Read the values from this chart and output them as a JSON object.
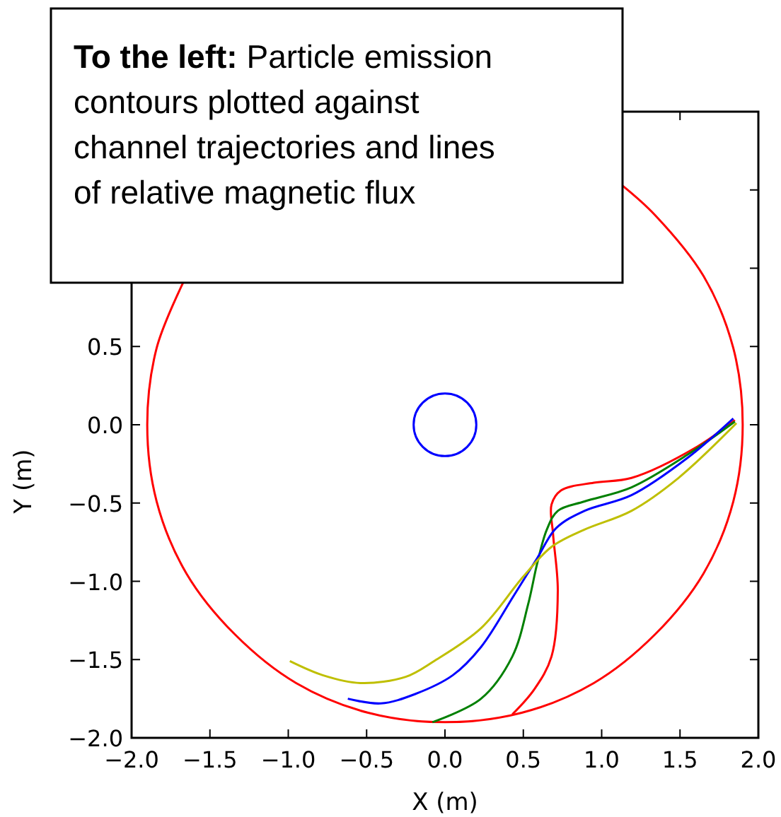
{
  "chart_data": {
    "type": "line",
    "xlabel": "X (m)",
    "ylabel": "Y (m)",
    "annotations": [
      "To the left: Particle emission contours plotted against channel trajectories and lines of relative magnetic flux"
    ],
    "xlim": [
      -2,
      2
    ],
    "ylim": [
      -2,
      2
    ],
    "xticks": [
      {
        "value": -2,
        "label": "−2.0"
      },
      {
        "value": -1.5,
        "label": "−1.5"
      },
      {
        "value": -1,
        "label": "−1.0"
      },
      {
        "value": -0.5,
        "label": "−0.5"
      },
      {
        "value": 0,
        "label": "0.0"
      },
      {
        "value": 0.5,
        "label": "0.5"
      },
      {
        "value": 1,
        "label": "1.0"
      },
      {
        "value": 1.5,
        "label": "1.5"
      },
      {
        "value": 2,
        "label": "2.0"
      }
    ],
    "yticks": [
      {
        "value": -2,
        "label": "−2.0"
      },
      {
        "value": -1.5,
        "label": "−1.5"
      },
      {
        "value": -1,
        "label": "−1.0"
      },
      {
        "value": -0.5,
        "label": "−0.5"
      },
      {
        "value": 0,
        "label": "0.0"
      },
      {
        "value": 0.5,
        "label": "0.5"
      },
      {
        "value": 1,
        "label": null
      },
      {
        "value": 1.5,
        "label": null
      }
    ],
    "grid": false,
    "marker": "none",
    "line_style": "solid",
    "series": [
      {
        "color": "#ff0000",
        "x": [
          1.13,
          1.34,
          1.65,
          1.84,
          1.9,
          1.84,
          1.65,
          1.34,
          0.95,
          0.49,
          0,
          -0.49,
          -0.95,
          -1.34,
          -1.65,
          -1.84,
          -1.9,
          -1.84,
          -1.67
        ],
        "values": [
          1.53,
          1.34,
          0.95,
          0.49,
          0,
          -0.49,
          -0.95,
          -1.34,
          -1.65,
          -1.84,
          -1.9,
          -1.84,
          -1.65,
          -1.34,
          -0.95,
          -0.49,
          0,
          0.49,
          0.91
        ]
      },
      {
        "color": "#ff0000",
        "x": [
          1.85,
          1.61,
          1.19,
          0.95,
          0.74,
          0.68,
          0.69,
          0.72,
          0.68,
          0.57,
          0.43
        ],
        "values": [
          0.03,
          -0.14,
          -0.34,
          -0.37,
          -0.42,
          -0.51,
          -0.7,
          -1.06,
          -1.48,
          -1.69,
          -1.85
        ]
      },
      {
        "color": "#008000",
        "x": [
          1.85,
          1.55,
          1.19,
          0.89,
          0.72,
          0.65,
          0.59,
          0.53,
          0.43,
          0.23,
          -0.08
        ],
        "values": [
          0.02,
          -0.19,
          -0.4,
          -0.49,
          -0.55,
          -0.67,
          -0.88,
          -1.15,
          -1.48,
          -1.75,
          -1.9
        ]
      },
      {
        "color": "#0000ff",
        "x": [
          1.84,
          1.55,
          1.19,
          0.89,
          0.71,
          0.59,
          0.44,
          0.23,
          0.05,
          -0.19,
          -0.41,
          -0.62
        ],
        "values": [
          0.04,
          -0.21,
          -0.45,
          -0.55,
          -0.66,
          -0.85,
          -1.09,
          -1.42,
          -1.6,
          -1.72,
          -1.78,
          -1.75
        ]
      },
      {
        "color": "#bfbf00",
        "x": [
          1.86,
          1.49,
          1.19,
          0.89,
          0.68,
          0.5,
          0.23,
          -0.07,
          -0.25,
          -0.54,
          -0.78,
          -0.99
        ],
        "values": [
          0.01,
          -0.34,
          -0.55,
          -0.67,
          -0.78,
          -0.97,
          -1.3,
          -1.51,
          -1.61,
          -1.65,
          -1.6,
          -1.51
        ]
      }
    ]
  }
}
